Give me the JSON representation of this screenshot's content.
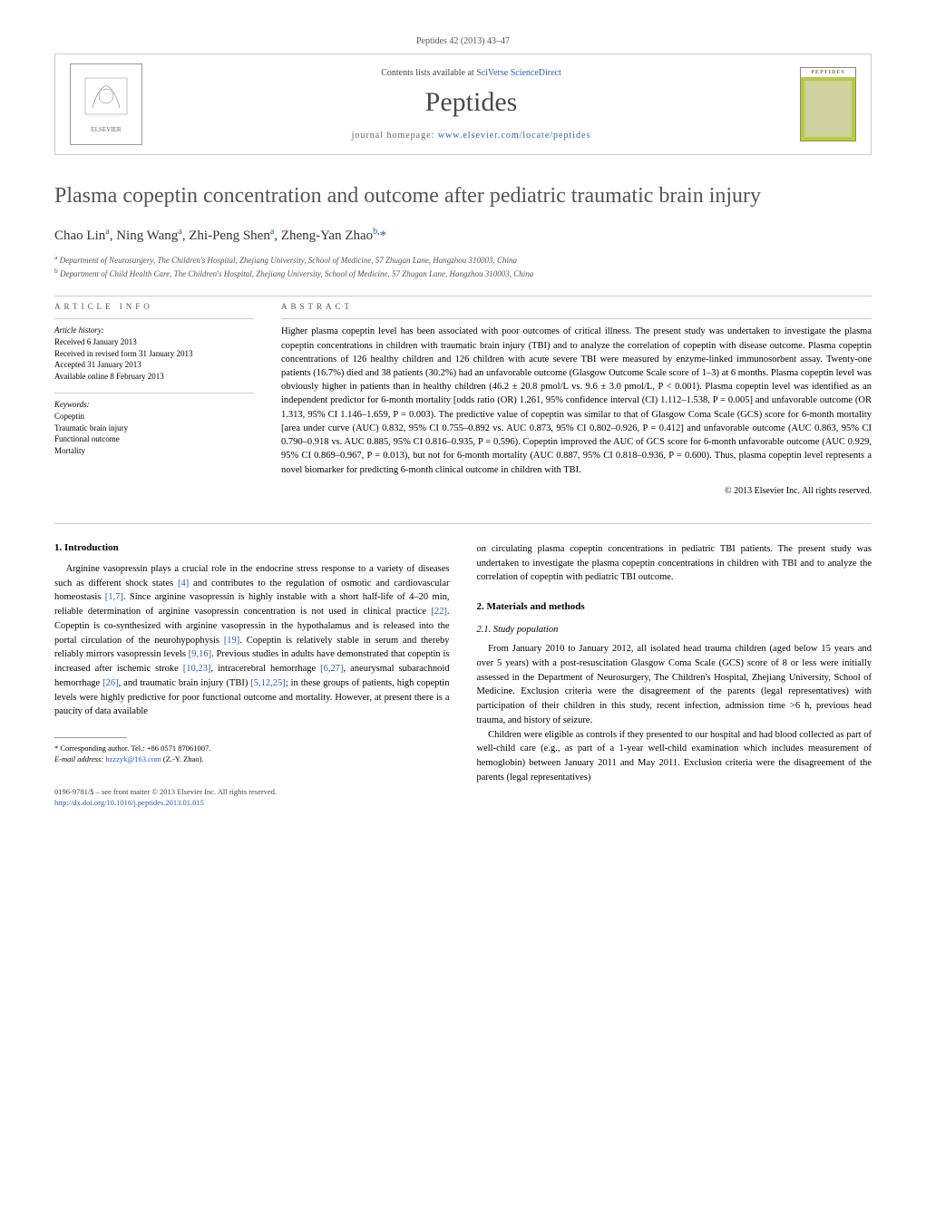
{
  "running_head": "Peptides 42 (2013) 43–47",
  "header": {
    "contents_prefix": "Contents lists available at ",
    "contents_link": "SciVerse ScienceDirect",
    "journal": "Peptides",
    "homepage_prefix": "journal homepage: ",
    "homepage_link": "www.elsevier.com/locate/peptides",
    "publisher_logo_label": "ELSEVIER",
    "cover_label": "PEPTIDES"
  },
  "title": "Plasma copeptin concentration and outcome after pediatric traumatic brain injury",
  "authors_html": "Chao Lin<sup>a</sup>, Ning Wang<sup>a</sup>, Zhi-Peng Shen<sup>a</sup>, Zheng-Yan Zhao<sup>b,</sup><span class='star'>*</span>",
  "affiliations": {
    "a": "Department of Neurosurgery, The Children's Hospital, Zhejiang University, School of Medicine, 57 Zhugan Lane, Hangzhou 310003, China",
    "b": "Department of Child Health Care, The Children's Hospital, Zhejiang University, School of Medicine, 57 Zhugan Lane, Hangzhou 310003, China"
  },
  "article_info": {
    "heading": "ARTICLE INFO",
    "history_label": "Article history:",
    "received": "Received 6 January 2013",
    "revised": "Received in revised form 31 January 2013",
    "accepted": "Accepted 31 January 2013",
    "online": "Available online 8 February 2013",
    "keywords_label": "Keywords:",
    "keywords": [
      "Copeptin",
      "Traumatic brain injury",
      "Functional outcome",
      "Mortality"
    ]
  },
  "abstract": {
    "heading": "ABSTRACT",
    "text": "Higher plasma copeptin level has been associated with poor outcomes of critical illness. The present study was undertaken to investigate the plasma copeptin concentrations in children with traumatic brain injury (TBI) and to analyze the correlation of copeptin with disease outcome. Plasma copeptin concentrations of 126 healthy children and 126 children with acute severe TBI were measured by enzyme-linked immunosorbent assay. Twenty-one patients (16.7%) died and 38 patients (30.2%) had an unfavorable outcome (Glasgow Outcome Scale score of 1–3) at 6 months. Plasma copeptin level was obviously higher in patients than in healthy children (46.2 ± 20.8 pmol/L vs. 9.6 ± 3.0 pmol/L, P < 0.001). Plasma copeptin level was identified as an independent predictor for 6-month mortality [odds ratio (OR) 1.261, 95% confidence interval (CI) 1.112–1.538, P = 0.005] and unfavorable outcome (OR 1.313, 95% CI 1.146–1.659, P = 0.003). The predictive value of copeptin was similar to that of Glasgow Coma Scale (GCS) score for 6-month mortality [area under curve (AUC) 0.832, 95% CI 0.755–0.892 vs. AUC 0.873, 95% CI 0.802–0.926, P = 0.412] and unfavorable outcome (AUC 0.863, 95% CI 0.790–0.918 vs. AUC 0.885, 95% CI 0.816–0.935, P = 0.596). Copeptin improved the AUC of GCS score for 6-month unfavorable outcome (AUC 0.929, 95% CI 0.869–0.967, P = 0.013), but not for 6-month mortality (AUC 0.887, 95% CI 0.818–0.936, P = 0.600). Thus, plasma copeptin level represents a novel biomarker for predicting 6-month clinical outcome in children with TBI.",
    "copyright": "© 2013 Elsevier Inc. All rights reserved."
  },
  "sections": {
    "intro_heading": "1. Introduction",
    "intro_p1": "Arginine vasopressin plays a crucial role in the endocrine stress response to a variety of diseases such as different shock states [4] and contributes to the regulation of osmotic and cardiovascular homeostasis [1,7]. Since arginine vasopressin is highly instable with a short half-life of 4–20 min, reliable determination of arginine vasopressin concentration is not used in clinical practice [22]. Copeptin is co-synthesized with arginine vasopressin in the hypothalamus and is released into the portal circulation of the neurohypophysis [19]. Copeptin is relatively stable in serum and thereby reliably mirrors vasopressin levels [9,16]. Previous studies in adults have demonstrated that copeptin is increased after ischemic stroke [10,23], intracerebral hemorrhage [6,27], aneurysmal subarachnoid hemorrhage [26], and traumatic brain injury (TBI) [5,12,25]; in these groups of patients, high copeptin levels were highly predictive for poor functional outcome and mortality. However, at present there is a paucity of data available",
    "intro_p1_cont": "on circulating plasma copeptin concentrations in pediatric TBI patients. The present study was undertaken to investigate the plasma copeptin concentrations in children with TBI and to analyze the correlation of copeptin with pediatric TBI outcome.",
    "methods_heading": "2. Materials and methods",
    "study_pop_heading": "2.1. Study population",
    "methods_p1": "From January 2010 to January 2012, all isolated head trauma children (aged below 15 years and over 5 years) with a post-resuscitation Glasgow Coma Scale (GCS) score of 8 or less were initially assessed in the Department of Neurosurgery, The Children's Hospital, Zhejiang University, School of Medicine. Exclusion criteria were the disagreement of the parents (legal representatives) with participation of their children in this study, recent infection, admission time >6 h, previous head trauma, and history of seizure.",
    "methods_p2": "Children were eligible as controls if they presented to our hospital and had blood collected as part of well-child care (e.g., as part of a 1-year well-child examination which includes measurement of hemoglobin) between January 2011 and May 2011. Exclusion criteria were the disagreement of the parents (legal representatives)"
  },
  "footnote": {
    "corr": "* Corresponding author. Tel.: +86 0571 87061007.",
    "email_label": "E-mail address: ",
    "email": "hzzzyk@163.com",
    "email_suffix": " (Z.-Y. Zhao)."
  },
  "bottom": {
    "line1": "0196-9781/$ – see front matter © 2013 Elsevier Inc. All rights reserved.",
    "doi": "http://dx.doi.org/10.1016/j.peptides.2013.01.015"
  },
  "refs_in_text": [
    "[4]",
    "[1,7]",
    "[22]",
    "[19]",
    "[9,16]",
    "[10,23]",
    "[6,27]",
    "[26]",
    "[5,12,25]"
  ],
  "colors": {
    "link": "#2a5db0",
    "title": "#555555",
    "border": "#cccccc",
    "cover_bg": "#b8cc3a",
    "text": "#000000"
  },
  "typography": {
    "title_fontsize_pt": 18,
    "journal_fontsize_pt": 22,
    "body_fontsize_pt": 8,
    "abstract_fontsize_pt": 8,
    "meta_fontsize_pt": 7
  }
}
